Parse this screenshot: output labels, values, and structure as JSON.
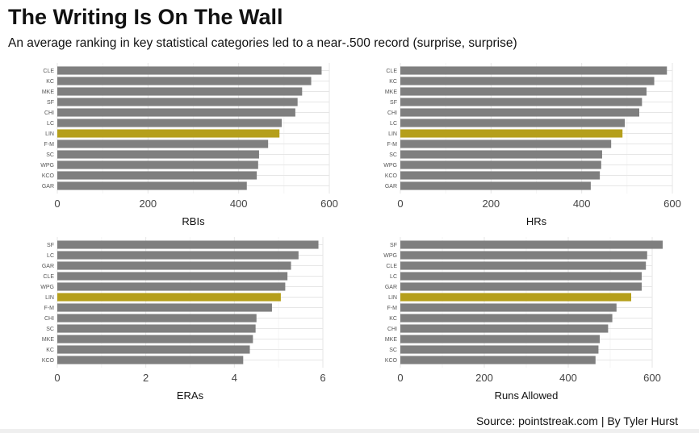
{
  "title": "The Writing Is On The Wall",
  "subtitle": "An average ranking in key statistical categories led to a near-.500 record (surprise, surprise)",
  "source": "Source: pointstreak.com | By Tyler Hurst",
  "colors": {
    "bar": "#7f7f7f",
    "highlight": "#b59f1b"
  },
  "chart_data": [
    {
      "type": "bar",
      "orientation": "horizontal",
      "xlabel": "RBIs",
      "xlim": [
        0,
        600
      ],
      "ticks": [
        0,
        200,
        400,
        600
      ],
      "highlight": "LIN",
      "categories": [
        "CLE",
        "KC",
        "MKE",
        "SF",
        "CHI",
        "LC",
        "LIN",
        "F-M",
        "SC",
        "WPG",
        "KCO",
        "GAR"
      ],
      "values": [
        583,
        560,
        540,
        530,
        525,
        495,
        490,
        465,
        445,
        443,
        440,
        418
      ]
    },
    {
      "type": "bar",
      "orientation": "horizontal",
      "xlabel": "HRs",
      "xlim": [
        0,
        600
      ],
      "ticks": [
        0,
        200,
        400,
        600
      ],
      "highlight": "LIN",
      "categories": [
        "CLE",
        "KC",
        "MKE",
        "SF",
        "CHI",
        "LC",
        "LIN",
        "F-M",
        "SC",
        "WPG",
        "KCO",
        "GAR"
      ],
      "values": [
        588,
        560,
        543,
        533,
        527,
        495,
        490,
        465,
        445,
        443,
        440,
        420
      ]
    },
    {
      "type": "bar",
      "orientation": "horizontal",
      "xlabel": "ERAs",
      "xlim": [
        0,
        6
      ],
      "ticks": [
        0,
        2,
        4,
        6
      ],
      "highlight": "LIN",
      "categories": [
        "SF",
        "LC",
        "GAR",
        "CLE",
        "WPG",
        "LIN",
        "F-M",
        "CHI",
        "SC",
        "MKE",
        "KC",
        "KCO"
      ],
      "values": [
        5.9,
        5.45,
        5.28,
        5.2,
        5.15,
        5.05,
        4.85,
        4.5,
        4.48,
        4.42,
        4.35,
        4.2
      ]
    },
    {
      "type": "bar",
      "orientation": "horizontal",
      "xlabel": "Runs Allowed",
      "xlim": [
        0,
        600
      ],
      "ticks": [
        0,
        200,
        400,
        600
      ],
      "highlight": "LIN",
      "categories": [
        "SF",
        "WPG",
        "CLE",
        "LC",
        "GAR",
        "LIN",
        "F-M",
        "KC",
        "CHI",
        "MKE",
        "SC",
        "KCO"
      ],
      "values": [
        625,
        588,
        585,
        575,
        575,
        550,
        515,
        505,
        495,
        475,
        472,
        465
      ]
    }
  ]
}
